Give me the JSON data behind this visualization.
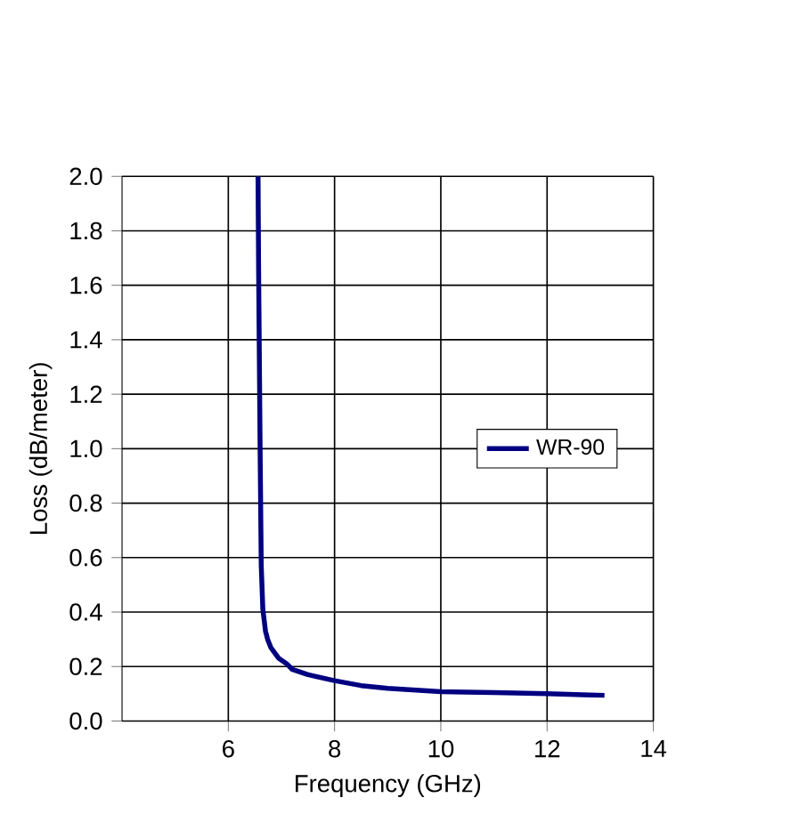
{
  "chart_data": {
    "type": "line",
    "xlabel": "Frequency (GHz)",
    "ylabel": "Loss (dB/meter)",
    "xlim": [
      4,
      14
    ],
    "xticks": [
      6,
      8,
      10,
      12,
      14
    ],
    "ylim": [
      0,
      2.0
    ],
    "yticks": [
      {
        "value": 0,
        "label": "0.0"
      },
      {
        "value": 0.2,
        "label": "0.2"
      },
      {
        "value": 0.4,
        "label": "0.4"
      },
      {
        "value": 0.6,
        "label": "0.6"
      },
      {
        "value": 0.8,
        "label": "0.8"
      },
      {
        "value": 1.0,
        "label": "1.0"
      },
      {
        "value": 1.2,
        "label": "1.2"
      },
      {
        "value": 1.4,
        "label": "1.4"
      },
      {
        "value": 1.6,
        "label": "1.6"
      },
      {
        "value": 1.8,
        "label": "1.8"
      },
      {
        "value": 2.0,
        "label": "2.0"
      }
    ],
    "grid": true,
    "legend": "right",
    "marker": "none",
    "line_style": "solid",
    "series": [
      {
        "name": "WR-90",
        "color": "#000080",
        "x": [
          6.56,
          6.57,
          6.6,
          6.62,
          6.65,
          6.7,
          6.74,
          6.8,
          6.95,
          7.1,
          7.2,
          7.5,
          8,
          8.5,
          9,
          10,
          11,
          12,
          13.08
        ],
        "values": [
          2.0,
          1.67,
          0.97,
          0.57,
          0.41,
          0.33,
          0.3,
          0.27,
          0.23,
          0.21,
          0.19,
          0.17,
          0.148,
          0.13,
          0.12,
          0.108,
          0.104,
          0.1,
          0.094
        ]
      }
    ]
  }
}
